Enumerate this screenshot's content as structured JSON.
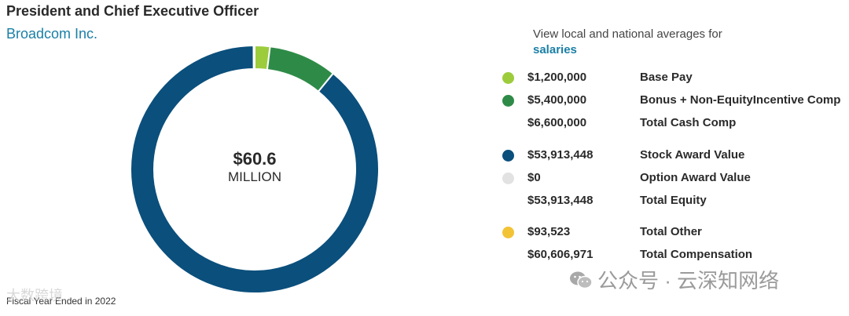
{
  "header": {
    "title": "President and Chief Executive Officer",
    "company": "Broadcom Inc."
  },
  "center": {
    "amount": "$60.6",
    "unit": "MILLION"
  },
  "footer": {
    "fiscal_year": "Fiscal Year Ended in 2022"
  },
  "averages": {
    "prompt": "View local and national averages for",
    "link": "salaries"
  },
  "legend": [
    {
      "key": "base",
      "color": "#9ccc3c",
      "amount": "$1,200,000",
      "label": "Base Pay"
    },
    {
      "key": "bonus",
      "color": "#2e8b47",
      "amount": "$5,400,000",
      "label": "Bonus + Non-EquityIncentive Comp"
    },
    {
      "key": "cash",
      "color": "",
      "amount": "$6,600,000",
      "label": "Total Cash Comp"
    },
    {
      "key": "stock",
      "color": "#0b4f7c",
      "amount": "$53,913,448",
      "label": "Stock Award Value"
    },
    {
      "key": "option",
      "color": "#e2e2e2",
      "amount": "$0",
      "label": "Option Award Value"
    },
    {
      "key": "equity",
      "color": "",
      "amount": "$53,913,448",
      "label": "Total Equity"
    },
    {
      "key": "other",
      "color": "#f2c335",
      "amount": "$93,523",
      "label": "Total Other"
    },
    {
      "key": "total",
      "color": "",
      "amount": "$60,606,971",
      "label": "Total Compensation"
    }
  ],
  "watermark": {
    "text": "公众号 · 云深知网络",
    "text2": "大数跨境"
  },
  "chart_data": {
    "type": "pie",
    "donut": true,
    "slices": [
      {
        "name": "Base Pay",
        "value": 1200000,
        "color": "#9ccc3c"
      },
      {
        "name": "Bonus + Non-EquityIncentive Comp",
        "value": 5400000,
        "color": "#2e8b47"
      },
      {
        "name": "Stock Award Value",
        "value": 53913448,
        "color": "#0b4f7c"
      },
      {
        "name": "Option Award Value",
        "value": 0,
        "color": "#e2e2e2"
      },
      {
        "name": "Total Other",
        "value": 93523,
        "color": "#f2c335"
      }
    ],
    "total": 60606971
  }
}
